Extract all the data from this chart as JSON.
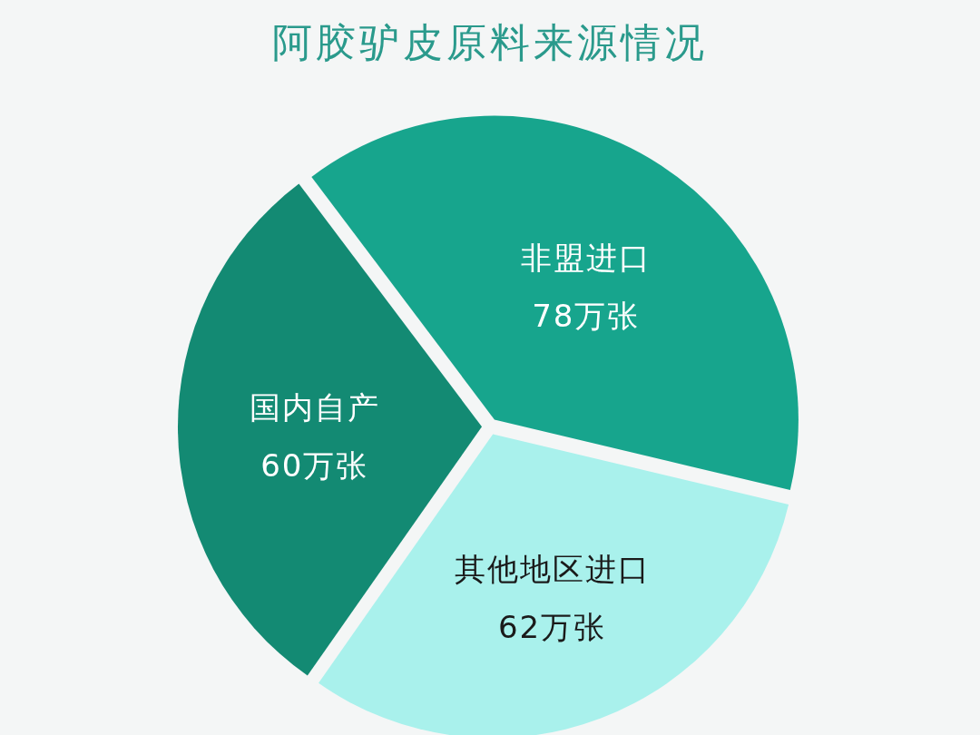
{
  "chart_data": {
    "type": "pie",
    "title": "阿胶驴皮原料来源情况",
    "categories": [
      "非盟进口",
      "其他地区进口",
      "国内自产"
    ],
    "values": [
      78,
      62,
      60
    ],
    "value_labels": [
      "78万张",
      "62万张",
      "60万张"
    ],
    "colors": [
      "#17a58d",
      "#a9f1ec",
      "#138a73"
    ]
  }
}
